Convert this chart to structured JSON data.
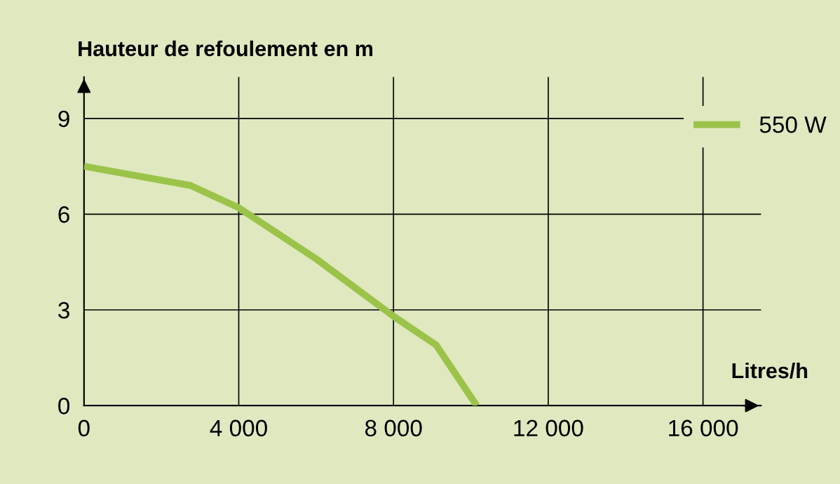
{
  "chart_data": {
    "type": "line",
    "xlabel": "Litres/h",
    "ylabel": "Hauteur de refoulement en m",
    "x": [
      0,
      2750,
      4000,
      6000,
      8000,
      9100,
      10150
    ],
    "series": [
      {
        "name": "550 W",
        "color": "#9bc34a",
        "values": [
          7.5,
          6.9,
          6.2,
          4.6,
          2.8,
          1.9,
          0
        ]
      }
    ],
    "xlim": [
      0,
      17500
    ],
    "ylim": [
      0,
      10.3
    ],
    "xticks": [
      0,
      {
        "value": 4000,
        "label": "4 000"
      },
      {
        "value": 8000,
        "label": "8 000"
      },
      {
        "value": 12000,
        "label": "12 000"
      },
      {
        "value": 16000,
        "label": "16 000"
      }
    ],
    "yticks": [
      0,
      3,
      6,
      9
    ],
    "grid": true,
    "legend": "top right",
    "marker": "none",
    "line_style": "solid"
  }
}
